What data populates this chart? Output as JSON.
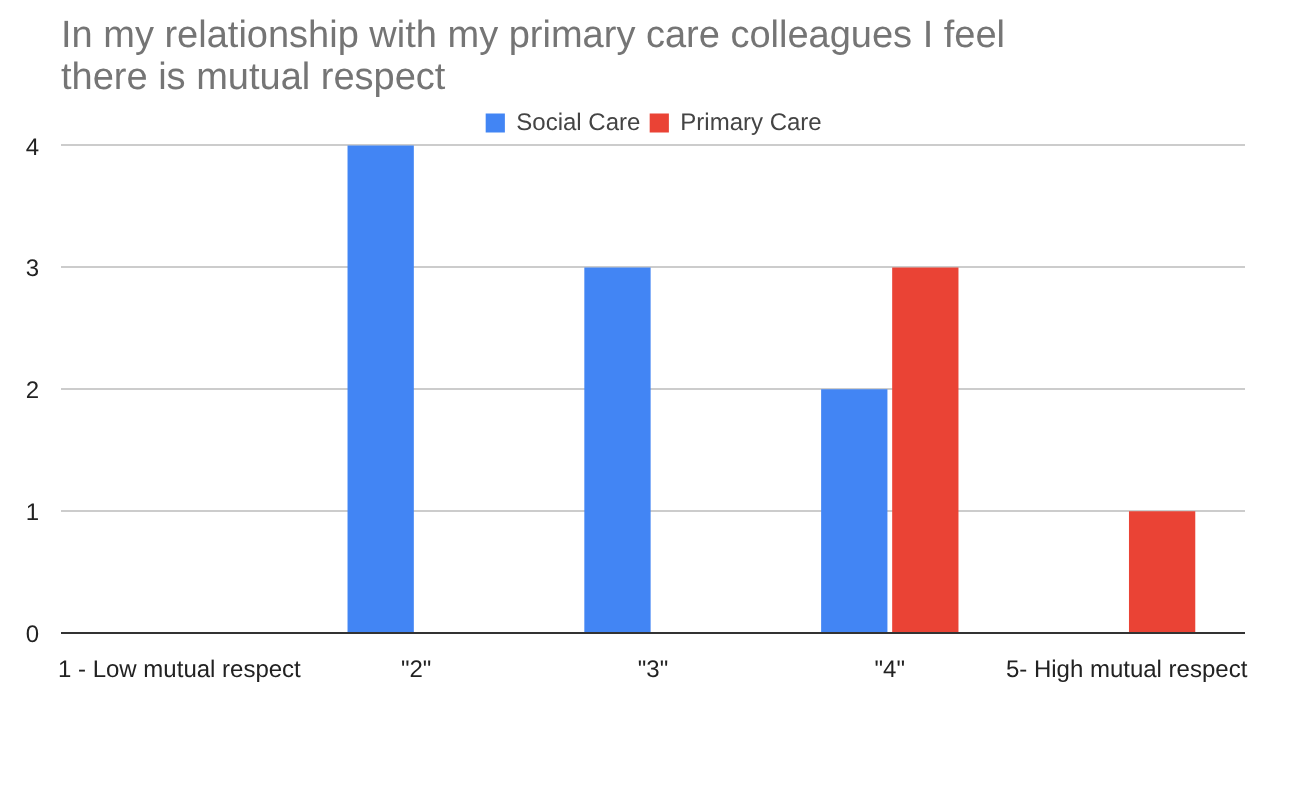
{
  "chart_data": {
    "type": "bar",
    "title": "In my relationship with my primary care colleagues I feel there is mutual respect",
    "categories": [
      "1 - Low mutual respect",
      "\"2\"",
      "\"3\"",
      "\"4\"",
      "5- High mutual respect"
    ],
    "series": [
      {
        "name": "Social Care",
        "color": "#4285f4",
        "values": [
          0,
          4,
          3,
          2,
          0
        ]
      },
      {
        "name": "Primary Care",
        "color": "#ea4335",
        "values": [
          0,
          0,
          0,
          3,
          1
        ]
      }
    ],
    "ylim": [
      0,
      4.3
    ],
    "yticks": [
      0,
      1,
      2,
      3,
      4
    ],
    "grid": "y",
    "legend": "top"
  }
}
